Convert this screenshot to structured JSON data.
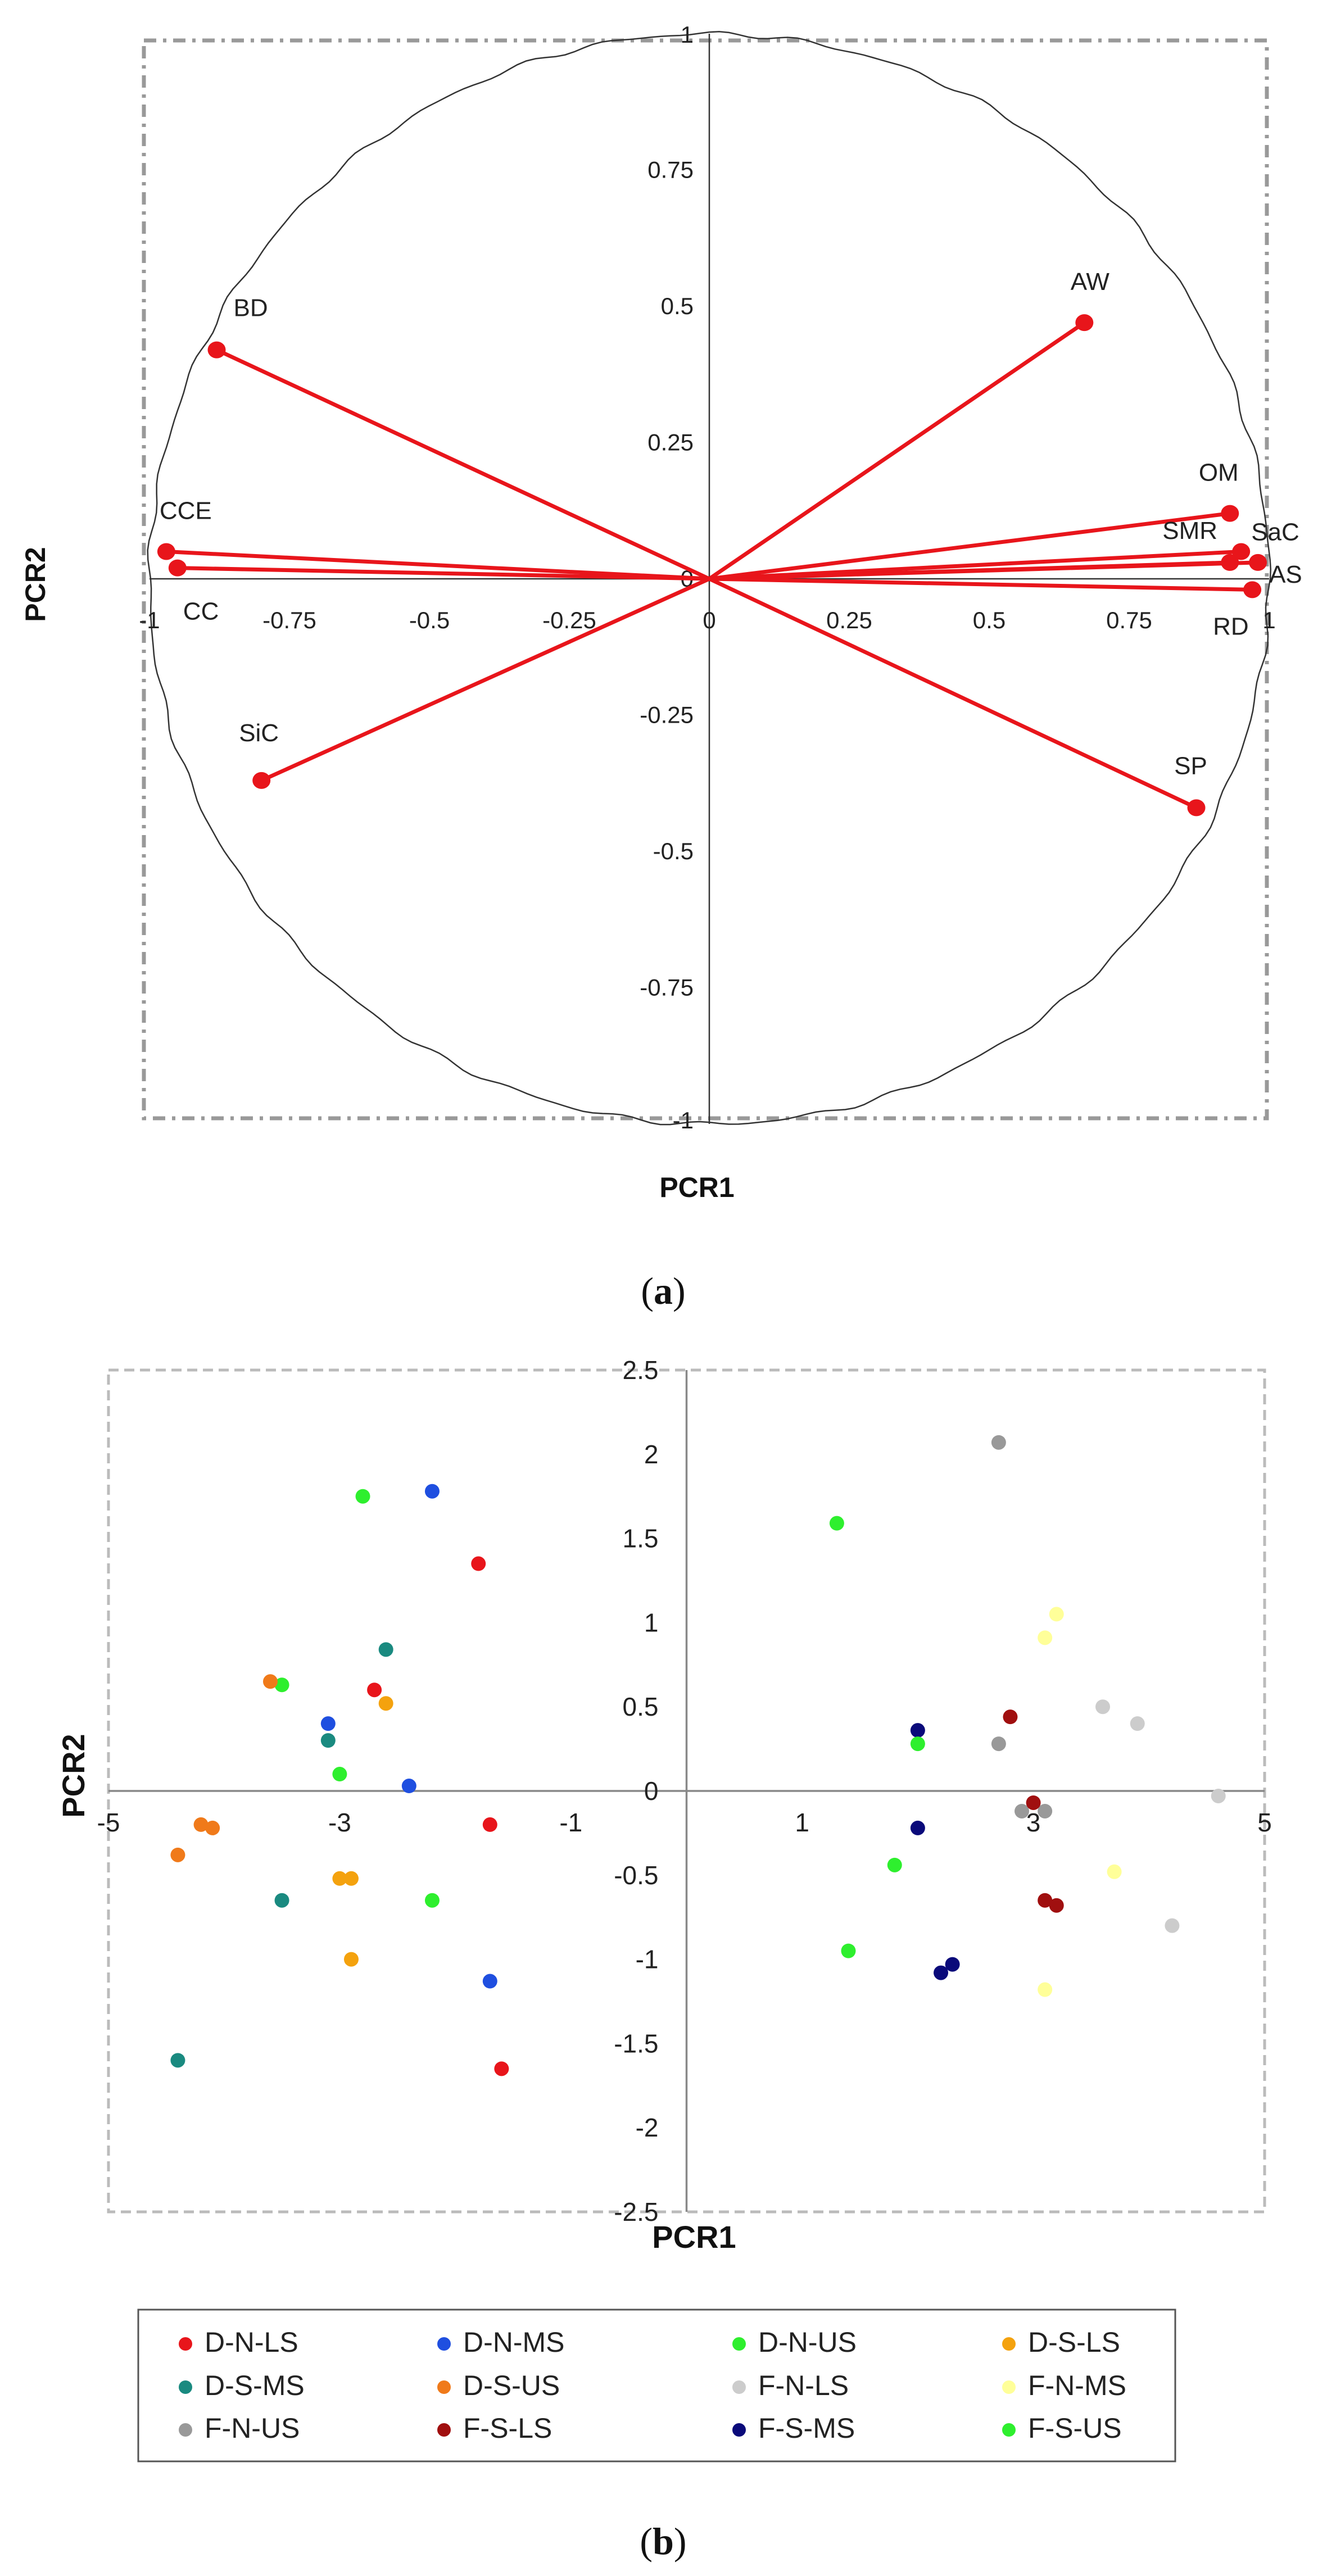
{
  "chart_data": [
    {
      "type": "scatter",
      "subtype": "correlation-circle",
      "caption": "(a)",
      "caption_letter": "a",
      "xlabel": "PCR1",
      "ylabel": "PCR2",
      "xlim": [
        -1,
        1
      ],
      "ylim": [
        -1,
        1
      ],
      "y_ticks": [
        "1",
        "0.75",
        "0.5",
        "0.25",
        "0",
        "-0.25",
        "-0.5",
        "-0.75",
        "-1"
      ],
      "x_ticks": [
        "-1",
        "-0.75",
        "-0.5",
        "-0.25",
        "0",
        "0.25",
        "0.5",
        "0.75",
        "1"
      ],
      "vectors": [
        {
          "name": "BD",
          "x": -0.88,
          "y": 0.42
        },
        {
          "name": "CCE",
          "x": -0.97,
          "y": 0.05
        },
        {
          "name": "CC",
          "x": -0.95,
          "y": 0.02
        },
        {
          "name": "SiC",
          "x": -0.8,
          "y": -0.37
        },
        {
          "name": "AW",
          "x": 0.67,
          "y": 0.47
        },
        {
          "name": "OM",
          "x": 0.93,
          "y": 0.12
        },
        {
          "name": "SaC",
          "x": 0.95,
          "y": 0.05
        },
        {
          "name": "SMR",
          "x": 0.93,
          "y": 0.03
        },
        {
          "name": "AS",
          "x": 0.98,
          "y": 0.03
        },
        {
          "name": "RD",
          "x": 0.97,
          "y": -0.02
        },
        {
          "name": "SP",
          "x": 0.87,
          "y": -0.42
        }
      ],
      "colors": {
        "vector": "#e8151b",
        "circle": "#333333",
        "frame": "#999999"
      }
    },
    {
      "type": "scatter",
      "caption": "(b)",
      "caption_letter": "b",
      "xlabel": "PCR1",
      "ylabel": "PCR2",
      "xlim": [
        -5,
        5
      ],
      "ylim": [
        -2.5,
        2.5
      ],
      "x_ticks": [
        "-5",
        "-3",
        "-1",
        "1",
        "3",
        "5"
      ],
      "y_ticks": [
        "2.5",
        "2",
        "1.5",
        "1",
        "0.5",
        "0",
        "-0.5",
        "-1",
        "-1.5",
        "-2",
        "-2.5"
      ],
      "series": [
        {
          "name": "D-N-LS",
          "color": "#e8151b",
          "points": [
            [
              -1.8,
              1.35
            ],
            [
              -2.7,
              0.6
            ],
            [
              -1.7,
              -0.2
            ],
            [
              -1.6,
              -1.65
            ]
          ]
        },
        {
          "name": "D-N-MS",
          "color": "#1f4fe0",
          "points": [
            [
              -2.2,
              1.78
            ],
            [
              -3.1,
              0.4
            ],
            [
              -2.4,
              0.03
            ],
            [
              -1.7,
              -1.13
            ]
          ]
        },
        {
          "name": "D-N-US",
          "color": "#2eef2e",
          "points": [
            [
              -2.8,
              1.75
            ],
            [
              -3.5,
              0.63
            ],
            [
              -3.0,
              0.1
            ],
            [
              -2.2,
              -0.65
            ]
          ]
        },
        {
          "name": "D-S-LS",
          "color": "#f4a20e",
          "points": [
            [
              -2.6,
              0.52
            ],
            [
              -3.0,
              -0.52
            ],
            [
              -2.9,
              -0.52
            ],
            [
              -2.9,
              -1.0
            ]
          ]
        },
        {
          "name": "D-S-MS",
          "color": "#1a8a80",
          "points": [
            [
              -2.6,
              0.84
            ],
            [
              -3.1,
              0.3
            ],
            [
              -3.5,
              -0.65
            ],
            [
              -4.4,
              -1.6
            ]
          ]
        },
        {
          "name": "D-S-US",
          "color": "#f07a1a",
          "points": [
            [
              -3.6,
              0.65
            ],
            [
              -4.2,
              -0.2
            ],
            [
              -4.1,
              -0.22
            ],
            [
              -4.4,
              -0.38
            ]
          ]
        },
        {
          "name": "F-N-LS",
          "color": "#cccccc",
          "points": [
            [
              3.6,
              0.5
            ],
            [
              3.9,
              0.4
            ],
            [
              4.6,
              -0.03
            ],
            [
              4.2,
              -0.8
            ]
          ]
        },
        {
          "name": "F-N-MS",
          "color": "#ffff99",
          "points": [
            [
              3.2,
              1.05
            ],
            [
              3.1,
              0.91
            ],
            [
              3.7,
              -0.48
            ],
            [
              3.1,
              -1.18
            ]
          ]
        },
        {
          "name": "F-N-US",
          "color": "#999999",
          "points": [
            [
              2.7,
              2.07
            ],
            [
              2.7,
              0.28
            ],
            [
              2.9,
              -0.12
            ],
            [
              3.1,
              -0.12
            ]
          ]
        },
        {
          "name": "F-S-LS",
          "color": "#a00f0f",
          "points": [
            [
              2.8,
              0.44
            ],
            [
              3.0,
              -0.07
            ],
            [
              3.1,
              -0.65
            ],
            [
              3.2,
              -0.68
            ]
          ]
        },
        {
          "name": "F-S-MS",
          "color": "#0a0a7a",
          "points": [
            [
              2.0,
              0.36
            ],
            [
              2.0,
              -0.22
            ],
            [
              2.3,
              -1.03
            ],
            [
              2.2,
              -1.08
            ]
          ]
        },
        {
          "name": "F-S-US",
          "color": "#2eef2e",
          "points": [
            [
              1.3,
              1.59
            ],
            [
              2.0,
              0.28
            ],
            [
              1.8,
              -0.44
            ],
            [
              1.4,
              -0.95
            ]
          ]
        }
      ],
      "colors": {
        "axis": "#888888",
        "frame": "#bbbbbb"
      }
    }
  ]
}
